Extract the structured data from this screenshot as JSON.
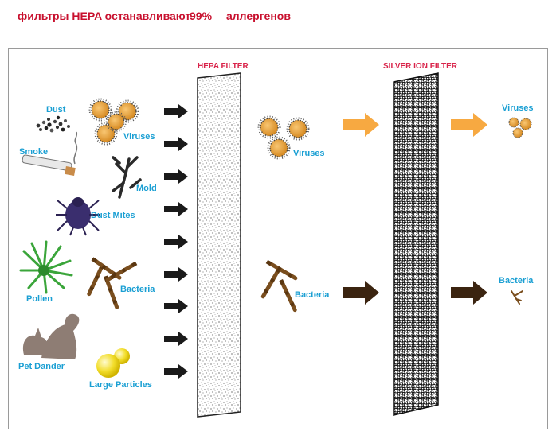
{
  "headline": {
    "text": "фильтры HEPA останавливают",
    "percent": "99%",
    "tail": "аллергенов"
  },
  "filters": {
    "hepa_title": "HEPA FILTER",
    "silver_title": "SILVER ION FILTER"
  },
  "inputs": {
    "dust": "Dust",
    "viruses": "Viruses",
    "smoke": "Smoke",
    "mold": "Mold",
    "dust_mites": "Dust Mites",
    "pollen": "Pollen",
    "bacteria": "Bacteria",
    "pet_dander": "Pet Dander",
    "large_particles": "Large Particles"
  },
  "middle": {
    "viruses": "Viruses",
    "bacteria": "Bacteria"
  },
  "outputs": {
    "viruses": "Viruses",
    "bacteria": "Bacteria"
  },
  "colors": {
    "headline": "#c8102e",
    "filter_title": "#d9234a",
    "label": "#1a9fd3",
    "orange_arrow": "#f7a941",
    "brown_arrow": "#3b2410",
    "black_arrow": "#1a1a1a"
  }
}
